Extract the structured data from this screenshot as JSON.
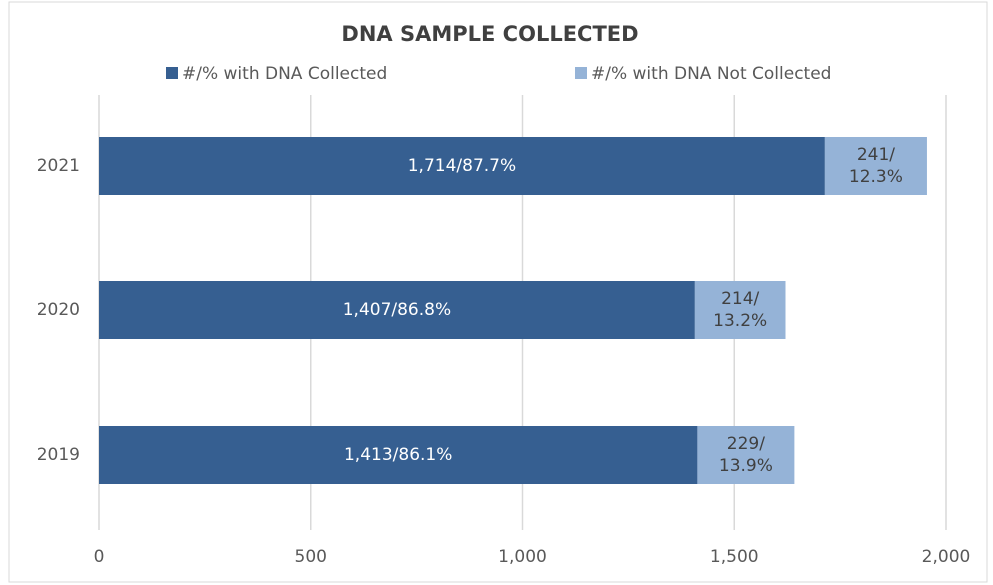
{
  "chart_data": {
    "type": "bar",
    "orientation": "horizontal",
    "stacked": true,
    "title": "DNA SAMPLE COLLECTED",
    "categories": [
      "2021",
      "2020",
      "2019"
    ],
    "series": [
      {
        "name": "#/% with DNA Collected",
        "color": "#365f91",
        "values": [
          1714,
          1407,
          1413
        ],
        "value_labels": [
          "1,714/87.7%",
          "1,407/86.8%",
          "1,413/86.1%"
        ]
      },
      {
        "name": "#/% with DNA Not Collected",
        "color": "#95b3d7",
        "values": [
          241,
          214,
          229
        ],
        "value_labels": [
          "241/ 12.3%",
          "214/ 13.2%",
          "229/ 13.9%"
        ]
      }
    ],
    "xlim": [
      0,
      2000
    ],
    "xticks": [
      0,
      {
        "value": 500,
        "label": "500"
      },
      {
        "value": 1000,
        "label": "1,000"
      },
      {
        "value": 1500,
        "label": "1,500"
      },
      {
        "value": 2000,
        "label": "2,000"
      }
    ],
    "grid": true,
    "legend": "top"
  }
}
